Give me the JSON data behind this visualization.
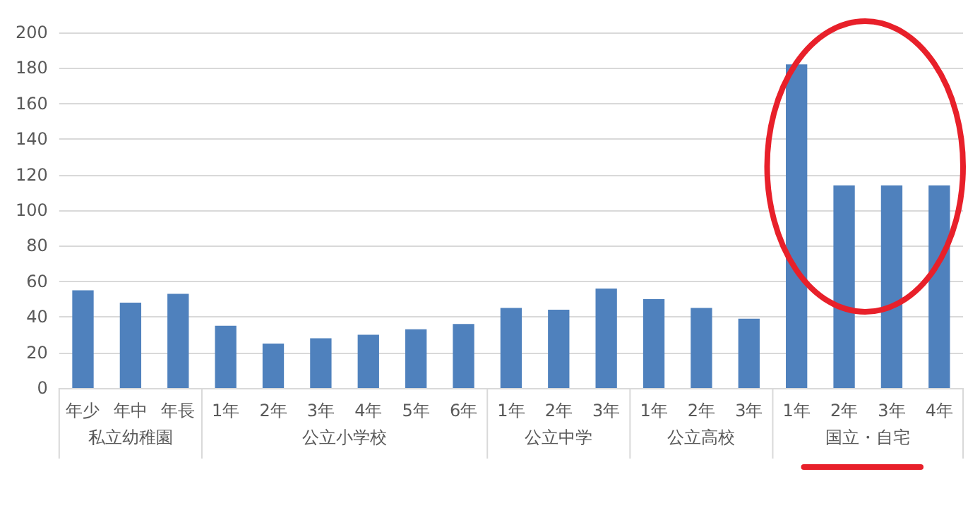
{
  "chart_data": {
    "type": "bar",
    "categories": [
      "年少",
      "年中",
      "年長",
      "1年",
      "2年",
      "3年",
      "4年",
      "5年",
      "6年",
      "1年",
      "2年",
      "3年",
      "1年",
      "2年",
      "3年",
      "1年",
      "2年",
      "3年",
      "4年"
    ],
    "values": [
      55,
      48,
      53,
      35,
      25,
      28,
      30,
      33,
      36,
      45,
      44,
      56,
      50,
      45,
      39,
      182,
      114,
      114,
      114
    ],
    "color": "#4f81bd",
    "ylim": [
      0,
      200
    ],
    "yticks": [
      0,
      20,
      40,
      60,
      80,
      100,
      120,
      140,
      160,
      180,
      200
    ],
    "grid": "y",
    "annotations": [
      "私立幼稚園",
      "公立小学校",
      "公立中学",
      "公立高校",
      "国立・自宅"
    ]
  }
}
